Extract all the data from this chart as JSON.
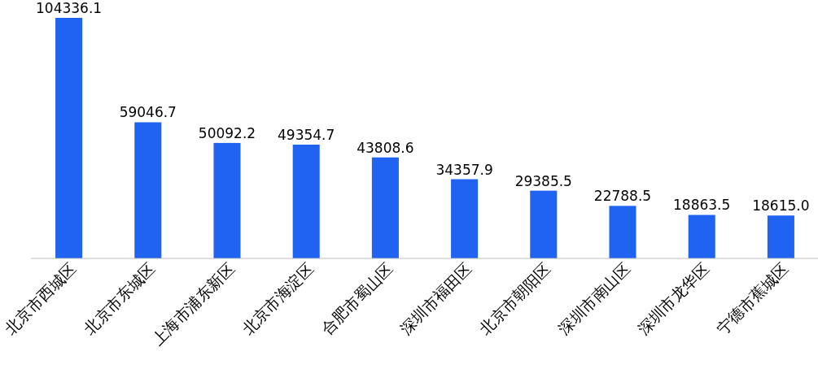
{
  "chart_data": {
    "type": "bar",
    "categories": [
      "北京市西城区",
      "北京市东城区",
      "上海市浦东新区",
      "北京市海淀区",
      "合肥市蜀山区",
      "深圳市福田区",
      "北京市朝阳区",
      "深圳市南山区",
      "深圳市龙华区",
      "宁德市蕉城区"
    ],
    "values": [
      104336.1,
      59046.7,
      50092.2,
      49354.7,
      43808.6,
      34357.9,
      29385.5,
      22788.5,
      18863.5,
      18615.0
    ],
    "value_labels": [
      "104336.1",
      "59046.7",
      "50092.2",
      "49354.7",
      "43808.6",
      "34357.9",
      "29385.5",
      "22788.5",
      "18863.5",
      "18615.0"
    ],
    "color": "#1f63f0"
  }
}
